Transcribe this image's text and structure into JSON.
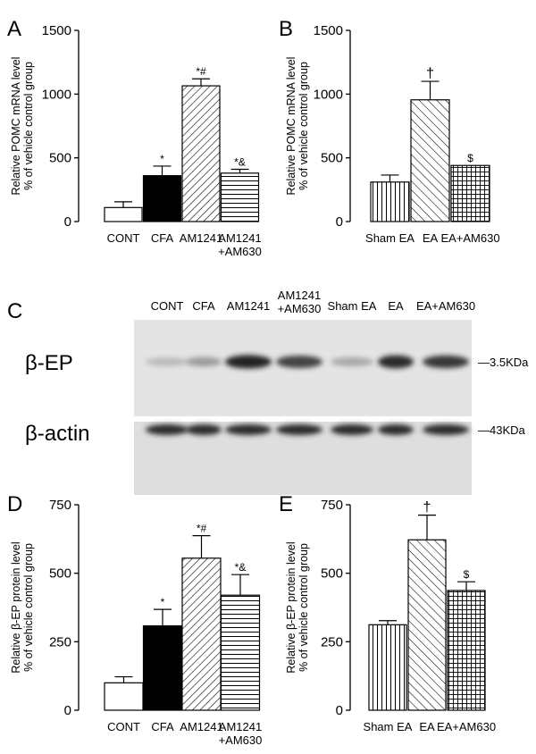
{
  "chart_data": [
    {
      "panel": "A",
      "type": "bar",
      "ylabel": [
        "Relative POMC mRNA level",
        "% of vehicle control group"
      ],
      "ylim": [
        0,
        1500
      ],
      "yticks": [
        0,
        500,
        1000,
        1500
      ],
      "categories": [
        [
          "CONT"
        ],
        [
          "CFA"
        ],
        [
          "AM1241"
        ],
        [
          "AM1241",
          "+AM630"
        ]
      ],
      "values": [
        110,
        360,
        1065,
        380
      ],
      "errors": [
        45,
        75,
        55,
        30
      ],
      "annotations": [
        "",
        "*",
        "*#",
        "*&"
      ],
      "fills": [
        "white",
        "black",
        "diag",
        "hlines"
      ]
    },
    {
      "panel": "B",
      "type": "bar",
      "ylabel": [
        "Relative POMC mRNA level",
        "% of vehicle control group"
      ],
      "ylim": [
        0,
        1500
      ],
      "yticks": [
        0,
        500,
        1000,
        1500
      ],
      "categories": [
        [
          "Sham EA"
        ],
        [
          "EA"
        ],
        [
          "EA+AM630"
        ]
      ],
      "values": [
        310,
        955,
        440
      ],
      "errors": [
        55,
        145,
        0
      ],
      "annotations": [
        "",
        "†",
        "$"
      ],
      "fills": [
        "vlines",
        "backdiag",
        "grid"
      ]
    },
    {
      "panel": "D",
      "type": "bar",
      "ylabel": [
        "Relative β-EP protein level",
        "% of vehicle control group"
      ],
      "ylim": [
        0,
        750
      ],
      "yticks": [
        0,
        250,
        500,
        750
      ],
      "categories": [
        [
          "CONT"
        ],
        [
          "CFA"
        ],
        [
          "AM1241"
        ],
        [
          "AM1241",
          "+AM630"
        ]
      ],
      "values": [
        100,
        308,
        555,
        420
      ],
      "errors": [
        22,
        60,
        82,
        75
      ],
      "annotations": [
        "",
        "*",
        "*#",
        "*&"
      ],
      "fills": [
        "white",
        "black",
        "diag",
        "hlines"
      ]
    },
    {
      "panel": "E",
      "type": "bar",
      "ylabel": [
        "Relative β-EP protein level",
        "% of vehicle control group"
      ],
      "ylim": [
        0,
        750
      ],
      "yticks": [
        0,
        250,
        500,
        750
      ],
      "categories": [
        [
          "Sham EA"
        ],
        [
          "EA"
        ],
        [
          "EA+AM630"
        ]
      ],
      "values": [
        312,
        622,
        437
      ],
      "errors": [
        15,
        90,
        32
      ],
      "annotations": [
        "",
        "†",
        "$"
      ],
      "fills": [
        "vlines",
        "backdiag",
        "grid"
      ]
    }
  ],
  "blot": {
    "panel": "C",
    "lanes": [
      [
        "CONT"
      ],
      [
        "CFA"
      ],
      [
        "AM1241"
      ],
      [
        "AM1241",
        "+AM630"
      ],
      [
        "Sham EA"
      ],
      [
        "EA"
      ],
      [
        "EA+AM630"
      ]
    ],
    "rows": [
      {
        "label": "β-EP",
        "marker": "—3.5KDa",
        "intensity": [
          0.22,
          0.35,
          0.9,
          0.75,
          0.3,
          0.85,
          0.8
        ]
      },
      {
        "label": "β-actin",
        "marker": "—43KDa",
        "intensity": [
          0.85,
          0.85,
          0.85,
          0.85,
          0.85,
          0.85,
          0.85
        ]
      }
    ]
  }
}
